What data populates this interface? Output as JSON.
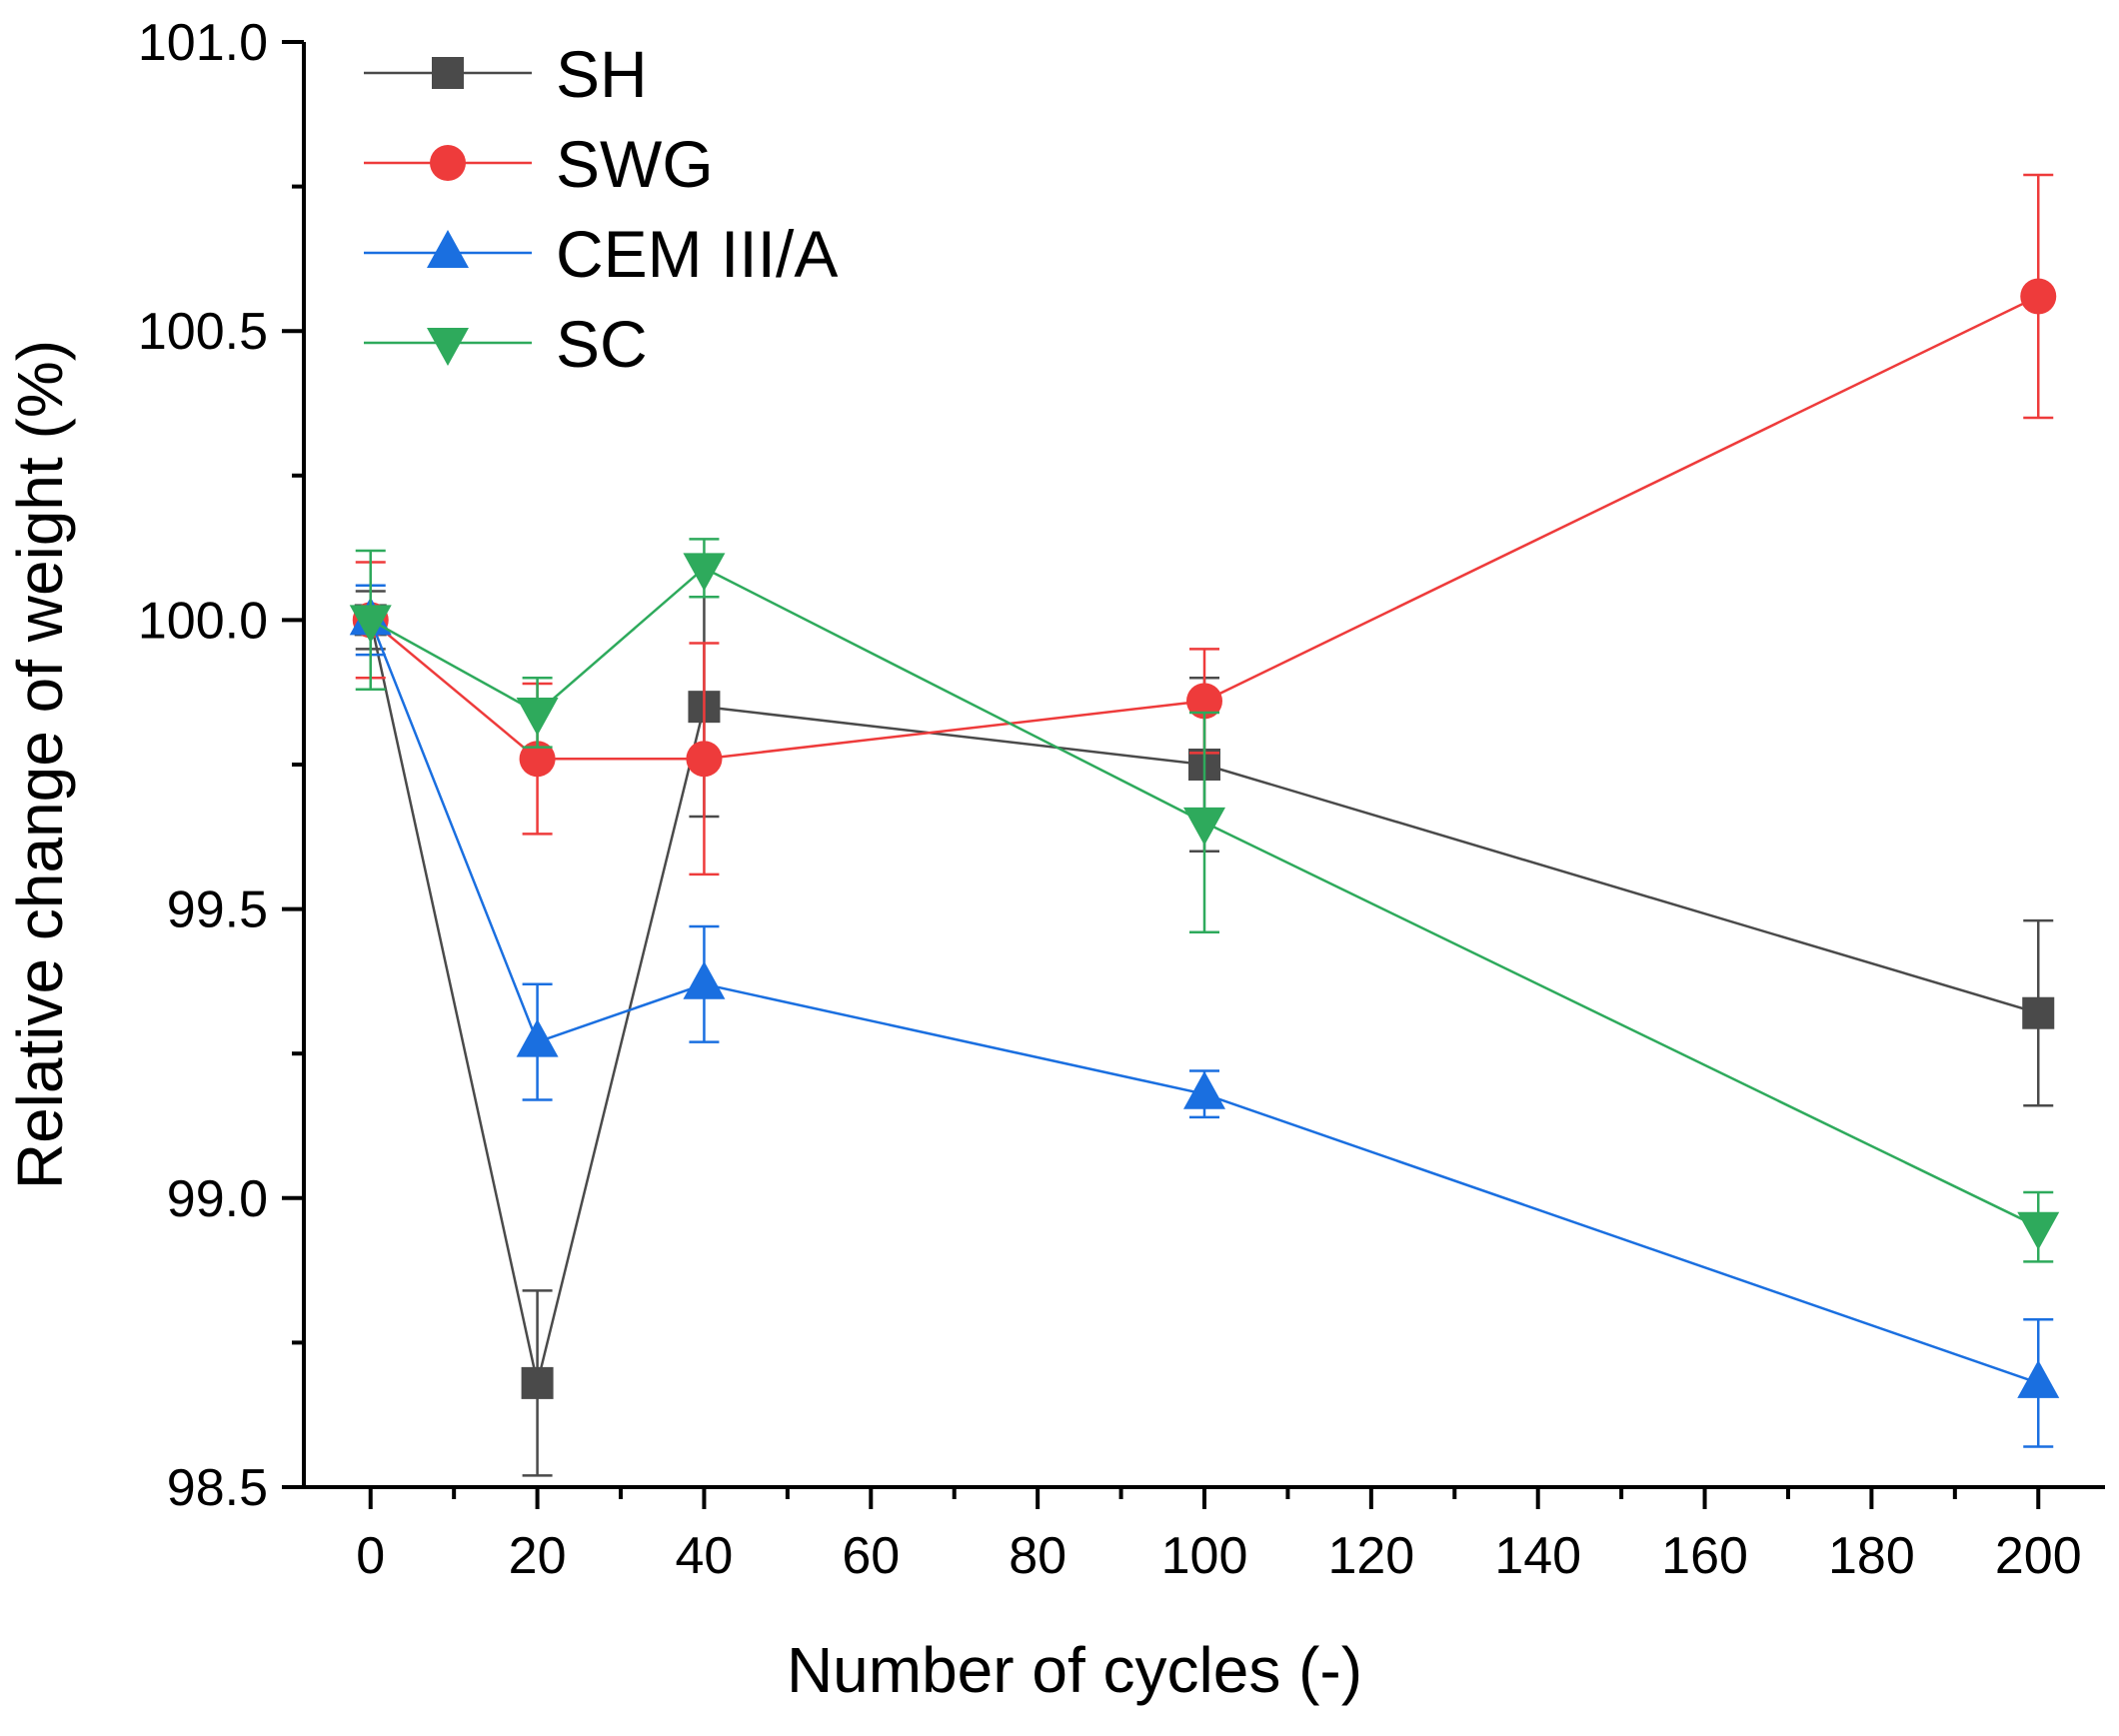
{
  "chart_data": {
    "type": "line",
    "title": "",
    "xlabel": "Number of cycles (-)",
    "ylabel": "Relative change of weight (%)",
    "xlim": [
      -8,
      208
    ],
    "ylim": [
      98.5,
      101.0
    ],
    "x_ticks": [
      0,
      20,
      40,
      60,
      80,
      100,
      120,
      140,
      160,
      180,
      200
    ],
    "x_tick_labels": [
      "0",
      "20",
      "40",
      "60",
      "80",
      "100",
      "120",
      "140",
      "160",
      "180",
      "200"
    ],
    "y_ticks": [
      98.5,
      99.0,
      99.5,
      100.0,
      100.5,
      101.0
    ],
    "y_tick_labels": [
      "98.5",
      "99.0",
      "99.5",
      "100.0",
      "100.5",
      "101.0"
    ],
    "x_minor_ticks": [
      10,
      30,
      50,
      70,
      90,
      110,
      130,
      150,
      170,
      190
    ],
    "y_minor_ticks": [
      98.75,
      99.25,
      99.75,
      100.25,
      100.75
    ],
    "grid": false,
    "legend_position": "top-left",
    "x": [
      0,
      20,
      40,
      100,
      200
    ],
    "series": [
      {
        "name": "SH",
        "color": "#4a4a4a",
        "marker": "square",
        "values": [
          100.0,
          98.68,
          99.85,
          99.75,
          99.32
        ],
        "error": [
          0.05,
          0.16,
          0.19,
          0.15,
          0.16
        ]
      },
      {
        "name": "SWG",
        "color": "#ee3b3b",
        "marker": "circle",
        "values": [
          100.0,
          99.76,
          99.76,
          99.86,
          100.56
        ],
        "error": [
          0.1,
          0.13,
          0.2,
          0.09,
          0.21
        ]
      },
      {
        "name": "CEM III/A",
        "color": "#1a6fe0",
        "marker": "triangle-up",
        "values": [
          100.0,
          99.27,
          99.37,
          99.18,
          98.68
        ],
        "error": [
          0.06,
          0.1,
          0.1,
          0.04,
          0.11
        ]
      },
      {
        "name": "SC",
        "color": "#2eaa5c",
        "marker": "triangle-down",
        "values": [
          100.0,
          99.84,
          100.09,
          99.65,
          98.95
        ],
        "error": [
          0.12,
          0.06,
          0.05,
          0.19,
          0.06
        ]
      }
    ]
  }
}
